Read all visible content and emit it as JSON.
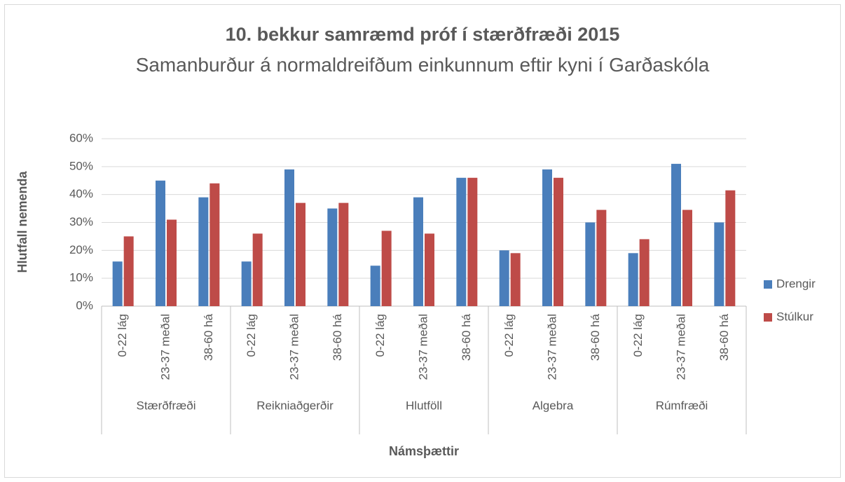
{
  "chart_data": {
    "type": "bar",
    "title": "10. bekkur samræmd próf í stærðfræði 2015",
    "subtitle": "Samanburður á normaldreifðum einkunnum eftir kyni í Garðaskóla",
    "x_label": "Námsþættir",
    "y_label": "Hlutfall nemenda",
    "categories": [
      "0-22 lág",
      "23-37 meðal",
      "38-60 há",
      "0-22 lág",
      "23-37 meðal",
      "38-60 há",
      "0-22 lág",
      "23-37 meðal",
      "38-60 há",
      "0-22 lág",
      "23-37 meðal",
      "38-60 há",
      "0-22 lág",
      "23-37 meðal",
      "38-60 há"
    ],
    "groups": [
      "Stærðfræði",
      "Reikniaðgerðir",
      "Hlutföll",
      "Algebra",
      "Rúmfræði"
    ],
    "series": [
      {
        "name": "Drengir",
        "color": "#4a7ebb",
        "values": [
          16,
          45,
          39,
          16,
          49,
          35,
          14.5,
          39,
          46,
          20,
          49,
          30,
          19,
          51,
          30
        ]
      },
      {
        "name": "Stúlkur",
        "color": "#be4b48",
        "values": [
          25,
          31,
          44,
          26,
          37,
          37,
          27,
          26,
          46,
          19,
          46,
          34.5,
          24,
          34.5,
          41.5
        ]
      }
    ],
    "ylim": [
      0,
      60
    ],
    "yticks": [
      {
        "value": 0,
        "label": "0%"
      },
      {
        "value": 10,
        "label": "10%"
      },
      {
        "value": 20,
        "label": "20%"
      },
      {
        "value": 30,
        "label": "30%"
      },
      {
        "value": 40,
        "label": "40%"
      },
      {
        "value": 50,
        "label": "50%"
      },
      {
        "value": 60,
        "label": "60%"
      }
    ],
    "grid": true,
    "legend": "right"
  }
}
